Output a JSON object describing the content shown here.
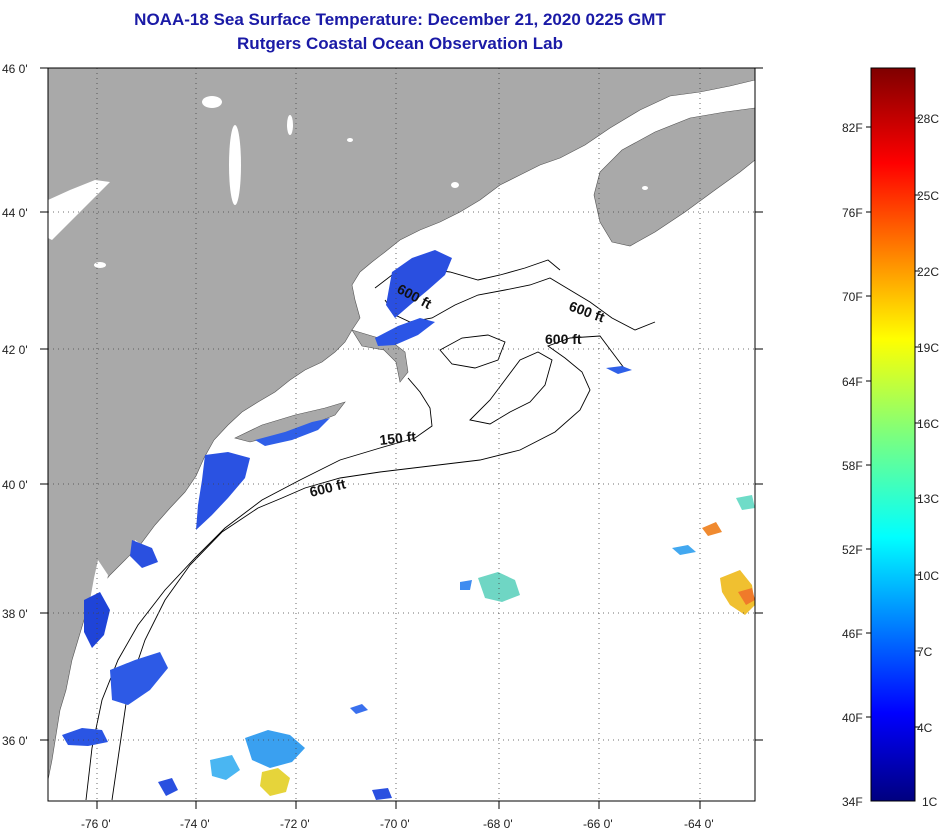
{
  "title_line1": "NOAA-18 Sea Surface Temperature:  December 21, 2020 0225 GMT",
  "title_line2": "Rutgers Coastal Ocean Observation Lab",
  "lat_labels": [
    "46 0'",
    "44 0'",
    "42 0'",
    "40 0'",
    "38 0'",
    "36 0'"
  ],
  "lon_labels": [
    "-76 0'",
    "-74 0'",
    "-72 0'",
    "-70 0'",
    "-68 0'",
    "-66 0'",
    "-64 0'"
  ],
  "contour_labels": [
    "600 ft",
    "600 ft",
    "600 ft",
    "150 ft",
    "600 ft"
  ],
  "colorbar": {
    "f_labels": [
      "82F",
      "76F",
      "70F",
      "64F",
      "58F",
      "52F",
      "46F",
      "40F",
      "34F"
    ],
    "c_labels": [
      "28C",
      "25C",
      "22C",
      "19C",
      "16C",
      "13C",
      "10C",
      "7C",
      "4C",
      "1C"
    ]
  },
  "colors": {
    "title": "#1a1aa6",
    "land": "#a9a9a9",
    "ocean": "#ffffff"
  }
}
